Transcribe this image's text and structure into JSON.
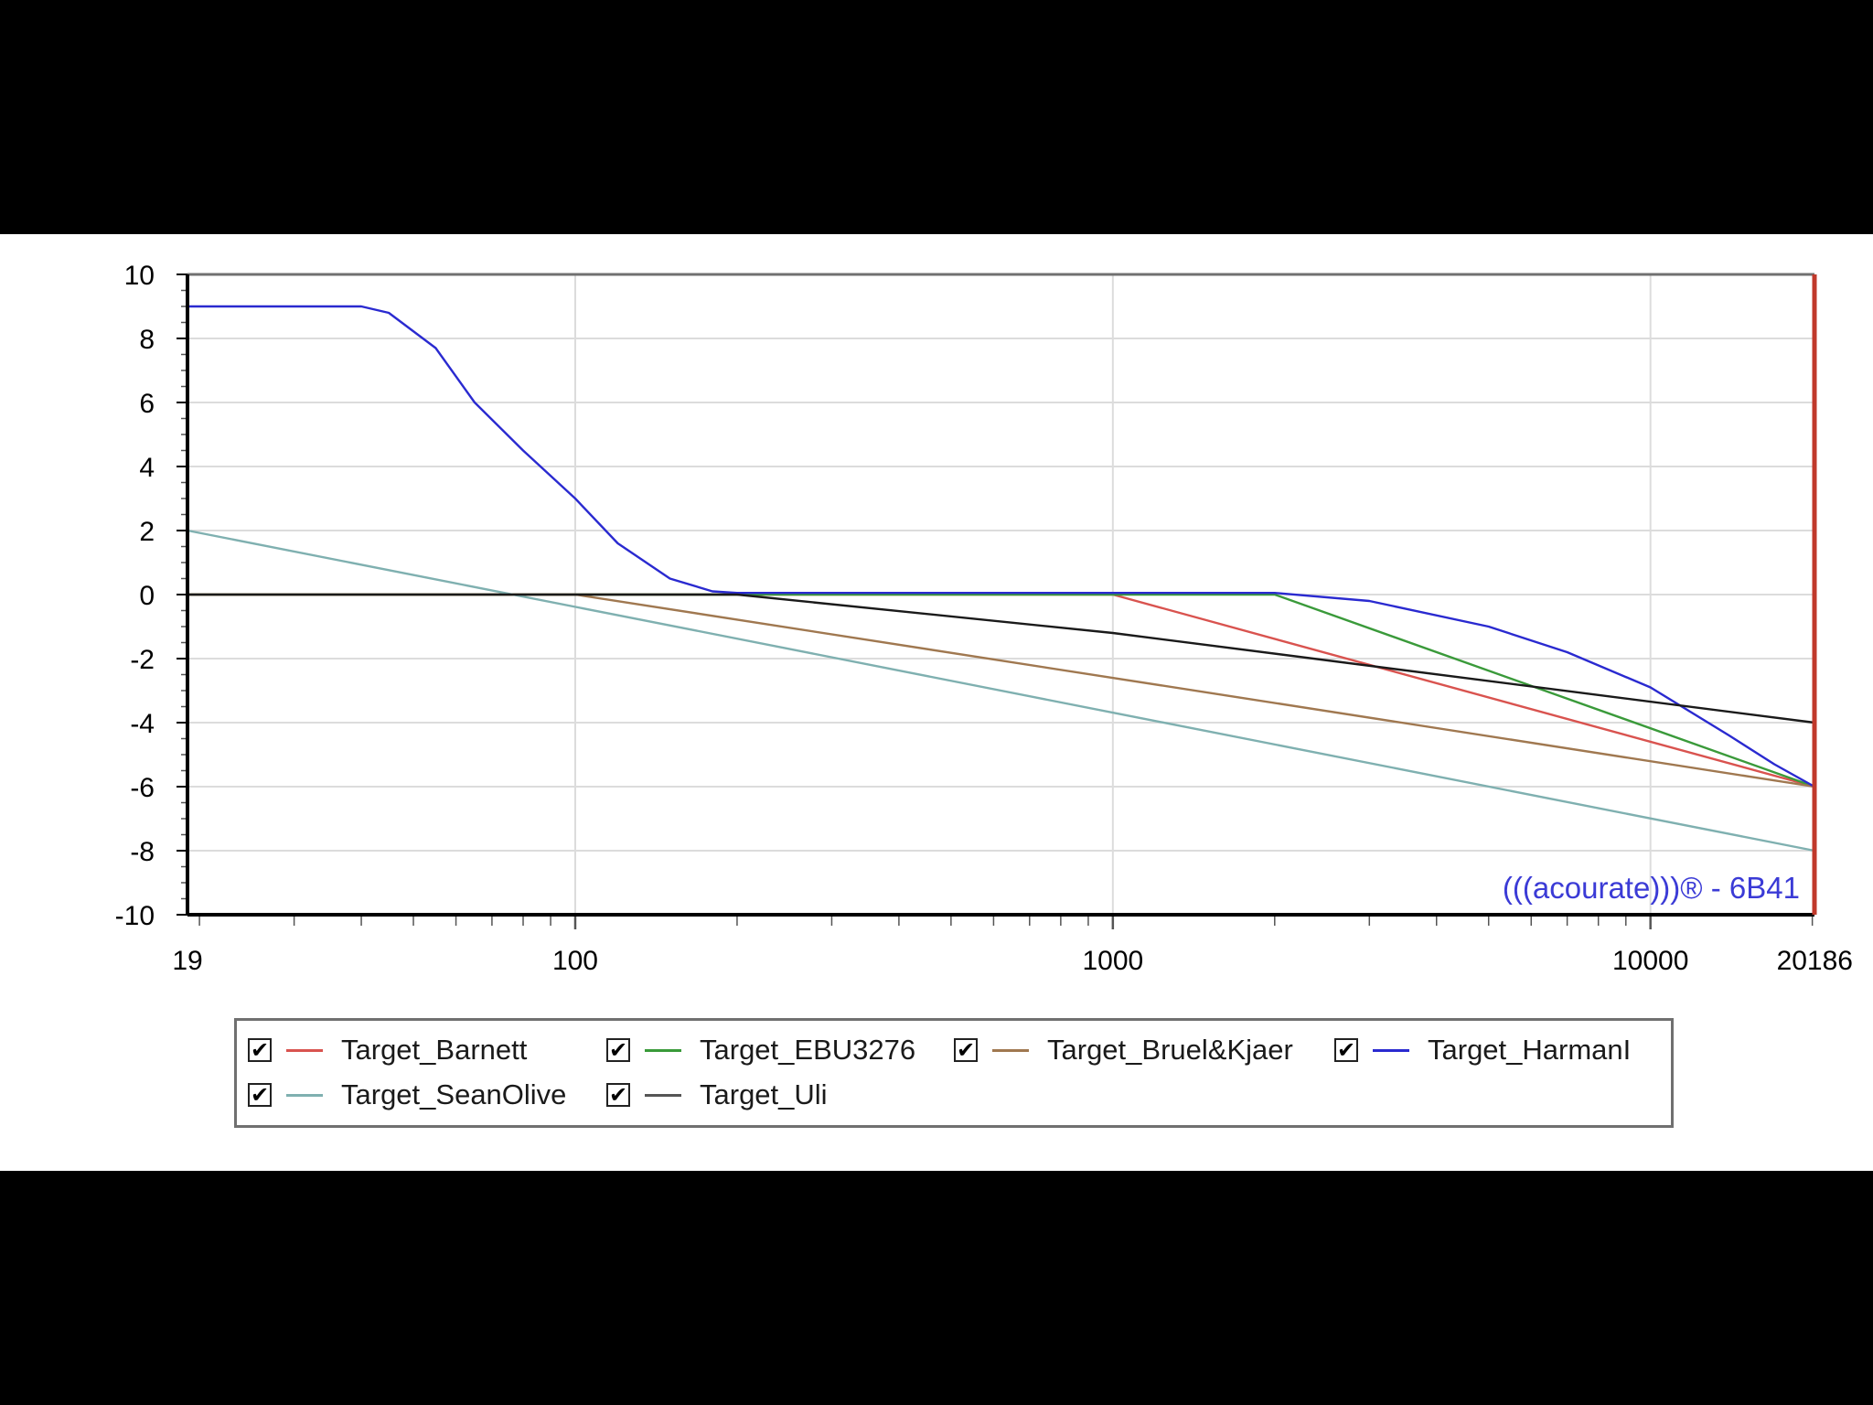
{
  "chart_data": {
    "type": "line",
    "x_scale": "log",
    "xlim": [
      19,
      20186
    ],
    "ylim": [
      -10,
      10
    ],
    "x_ticks": [
      19,
      100,
      1000,
      10000,
      20186
    ],
    "y_ticks": [
      10,
      8,
      6,
      4,
      2,
      0,
      -2,
      -4,
      -6,
      -8,
      -10
    ],
    "grid": true,
    "legend_position": "bottom",
    "watermark": "(((acourate)))® - 6B41",
    "series": [
      {
        "name": "Target_Barnett",
        "color": "#d9534f",
        "points": [
          [
            19,
            0
          ],
          [
            1000,
            0
          ],
          [
            20186,
            -6
          ]
        ]
      },
      {
        "name": "Target_EBU3276",
        "color": "#3a9a3a",
        "points": [
          [
            19,
            0
          ],
          [
            2000,
            0
          ],
          [
            20186,
            -6
          ]
        ]
      },
      {
        "name": "Target_Bruel&Kjaer",
        "color": "#a07850",
        "points": [
          [
            19,
            0
          ],
          [
            100,
            0
          ],
          [
            20186,
            -6
          ]
        ]
      },
      {
        "name": "Target_HarmanI",
        "color": "#2a2ad0",
        "points": [
          [
            19,
            9
          ],
          [
            40,
            9
          ],
          [
            45,
            8.8
          ],
          [
            55,
            7.7
          ],
          [
            65,
            6
          ],
          [
            80,
            4.5
          ],
          [
            100,
            3
          ],
          [
            120,
            1.6
          ],
          [
            150,
            0.5
          ],
          [
            180,
            0.1
          ],
          [
            200,
            0.05
          ],
          [
            2000,
            0.05
          ],
          [
            3000,
            -0.2
          ],
          [
            5000,
            -1
          ],
          [
            7000,
            -1.8
          ],
          [
            10000,
            -2.9
          ],
          [
            14000,
            -4.4
          ],
          [
            17000,
            -5.3
          ],
          [
            20186,
            -6
          ]
        ]
      },
      {
        "name": "Target_SeanOlive",
        "color": "#7fb0b0",
        "points": [
          [
            19,
            2
          ],
          [
            20186,
            -8
          ]
        ]
      },
      {
        "name": "Target_Uli",
        "color": "#1a1a1a",
        "points": [
          [
            19,
            0
          ],
          [
            200,
            0
          ],
          [
            1000,
            -1.2
          ],
          [
            20186,
            -4
          ]
        ]
      }
    ]
  },
  "legend": {
    "items": [
      {
        "label": "Target_Barnett",
        "checked": true
      },
      {
        "label": "Target_EBU3276",
        "checked": true
      },
      {
        "label": "Target_Bruel&Kjaer",
        "checked": true
      },
      {
        "label": "Target_HarmanI",
        "checked": true
      },
      {
        "label": "Target_SeanOlive",
        "checked": true
      },
      {
        "label": "Target_Uli",
        "checked": true
      }
    ],
    "check_glyph": "✔"
  }
}
